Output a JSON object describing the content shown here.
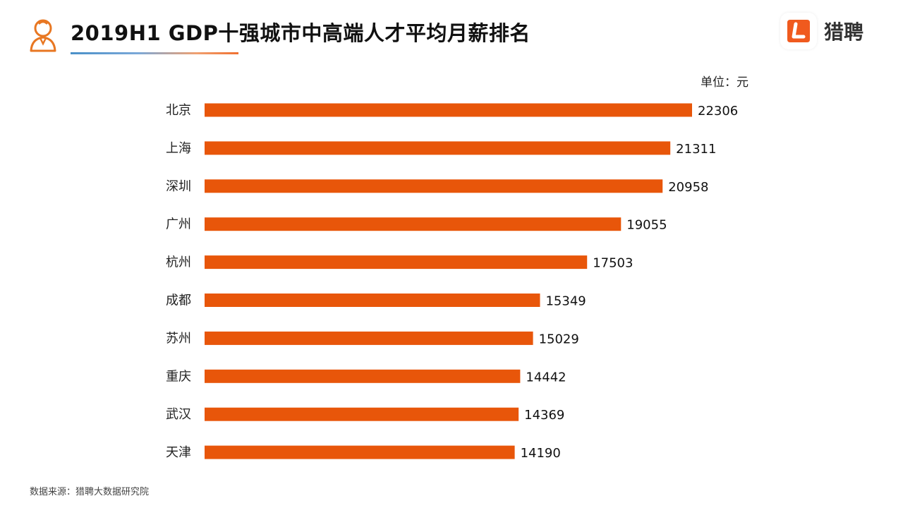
{
  "header": {
    "title": "2019H1 GDP十强城市中高端人才平均月薪排名",
    "person_icon": "person-outline-icon",
    "logo_icon": "liepin-l-icon",
    "logo_text": "猎聘"
  },
  "unit_label": "单位：元",
  "source": "数据来源：猎聘大数据研究院",
  "colors": {
    "bar": "#e8560a",
    "accent": "#e87722",
    "logo": "#f05a1e"
  },
  "chart_data": {
    "type": "bar",
    "orientation": "horizontal",
    "title": "2019H1 GDP十强城市中高端人才平均月薪排名",
    "unit": "单位：元",
    "categories": [
      "北京",
      "上海",
      "深圳",
      "广州",
      "杭州",
      "成都",
      "苏州",
      "重庆",
      "武汉",
      "天津"
    ],
    "values": [
      22306,
      21311,
      20958,
      19055,
      17503,
      15349,
      15029,
      14442,
      14369,
      14190
    ],
    "xlim": [
      0,
      22306
    ],
    "data_labels": true,
    "grid": false,
    "legend": "none"
  }
}
